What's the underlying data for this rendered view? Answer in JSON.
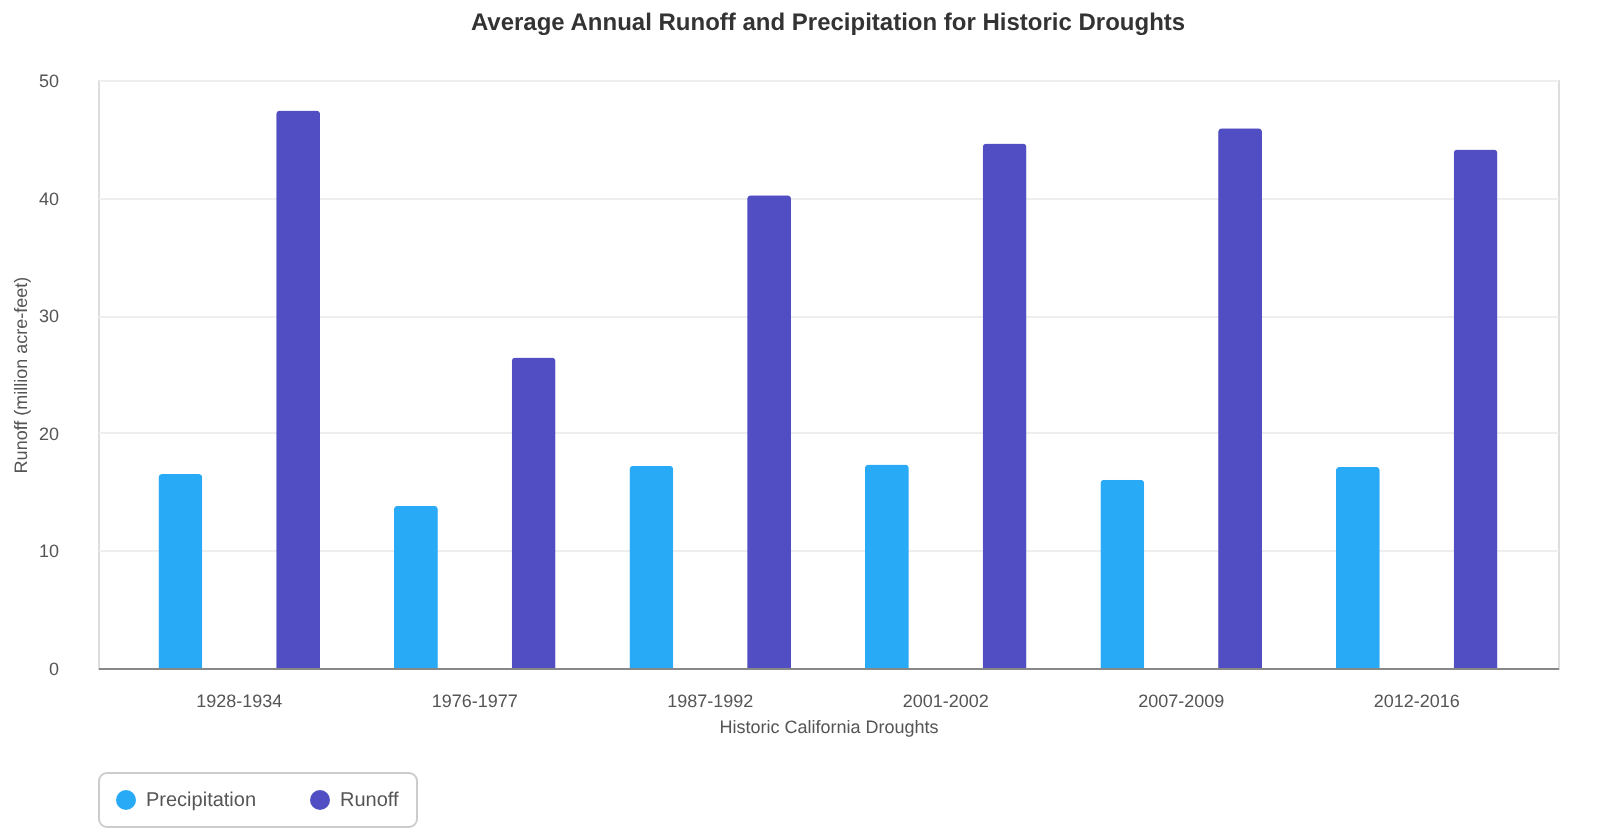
{
  "chart_data": {
    "type": "bar",
    "title": "Average Annual Runoff and Precipitation for Historic Droughts",
    "xlabel": "Historic California Droughts",
    "ylabel": "Runoff (million acre-feet)",
    "categories": [
      "1928-1934",
      "1976-1977",
      "1987-1992",
      "2001-2002",
      "2007-2009",
      "2012-2016"
    ],
    "series": [
      {
        "name": "Precipitation",
        "color": "#29aaf6",
        "values": [
          16.5,
          13.8,
          17.2,
          17.3,
          16.0,
          17.1
        ]
      },
      {
        "name": "Runoff",
        "color": "#514dc2",
        "values": [
          47.4,
          26.4,
          40.2,
          44.6,
          45.9,
          44.1
        ]
      }
    ],
    "ylim": [
      0,
      50
    ],
    "yticks": [
      0,
      10,
      20,
      30,
      40,
      50
    ],
    "grid": "y",
    "legend": "bottom"
  }
}
